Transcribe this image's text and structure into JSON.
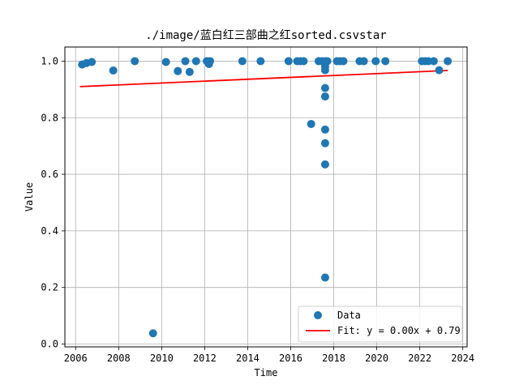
{
  "chart_data": {
    "type": "scatter",
    "title": "./image/蓝白红三部曲之红sorted.csvstar",
    "xlabel": "Time",
    "ylabel": "Value",
    "xlim": [
      2005.5,
      2024.2
    ],
    "ylim": [
      -0.01,
      1.05
    ],
    "xticks": [
      2006,
      2008,
      2010,
      2012,
      2014,
      2016,
      2018,
      2020,
      2022,
      2024
    ],
    "yticks": [
      0.0,
      0.2,
      0.4,
      0.6,
      0.8,
      1.0
    ],
    "grid": true,
    "legend_position": "lower-right",
    "series": [
      {
        "name": "Data",
        "kind": "scatter",
        "color": "#1f77b4",
        "points": [
          [
            2006.3,
            0.988
          ],
          [
            2006.5,
            0.993
          ],
          [
            2006.75,
            0.997
          ],
          [
            2007.75,
            0.967
          ],
          [
            2008.75,
            1.0
          ],
          [
            2009.6,
            0.038
          ],
          [
            2010.2,
            0.997
          ],
          [
            2010.75,
            0.965
          ],
          [
            2011.1,
            1.0
          ],
          [
            2011.3,
            0.962
          ],
          [
            2011.6,
            1.0
          ],
          [
            2012.1,
            1.0
          ],
          [
            2012.2,
            0.99
          ],
          [
            2012.25,
            1.0
          ],
          [
            2013.75,
            1.0
          ],
          [
            2014.6,
            1.0
          ],
          [
            2015.9,
            1.0
          ],
          [
            2016.3,
            1.0
          ],
          [
            2016.45,
            1.0
          ],
          [
            2016.6,
            1.0
          ],
          [
            2016.95,
            0.778
          ],
          [
            2017.3,
            1.0
          ],
          [
            2017.45,
            1.0
          ],
          [
            2017.6,
            1.0
          ],
          [
            2017.6,
            0.99
          ],
          [
            2017.6,
            0.98
          ],
          [
            2017.6,
            0.968
          ],
          [
            2017.6,
            0.905
          ],
          [
            2017.6,
            0.875
          ],
          [
            2017.6,
            0.758
          ],
          [
            2017.6,
            0.71
          ],
          [
            2017.6,
            0.635
          ],
          [
            2017.6,
            0.235
          ],
          [
            2017.7,
            1.0
          ],
          [
            2018.15,
            1.0
          ],
          [
            2018.3,
            1.0
          ],
          [
            2018.45,
            1.0
          ],
          [
            2019.2,
            1.0
          ],
          [
            2019.4,
            1.0
          ],
          [
            2019.95,
            1.0
          ],
          [
            2020.4,
            1.0
          ],
          [
            2022.1,
            1.0
          ],
          [
            2022.25,
            1.0
          ],
          [
            2022.4,
            1.0
          ],
          [
            2022.65,
            1.0
          ],
          [
            2022.9,
            0.968
          ],
          [
            2023.3,
            1.0
          ]
        ]
      },
      {
        "name": "Fit: y = 0.00x + 0.79",
        "kind": "line",
        "color": "#ff0000",
        "points": [
          [
            2006.2,
            0.91
          ],
          [
            2023.3,
            0.967
          ]
        ]
      }
    ]
  }
}
